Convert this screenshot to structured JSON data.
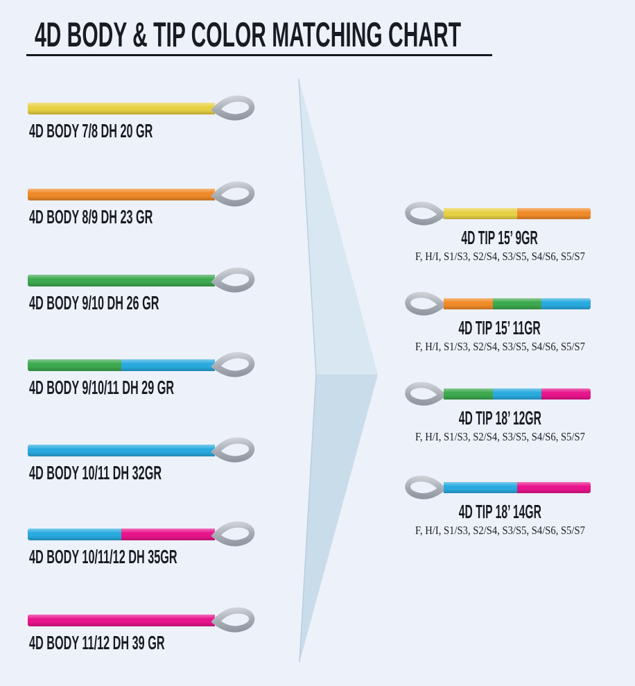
{
  "title": "4D BODY & TIP COLOR MATCHING CHART",
  "colors": {
    "yellow": "#e8d044",
    "orange": "#f08a28",
    "green": "#3ca94e",
    "blue": "#29aadf",
    "pink": "#e8148c",
    "loop_light": "#d2d6db",
    "loop_mid": "#a8adb5",
    "loop_dark": "#8e949d",
    "arrow_light": "#d8e7f1",
    "arrow_main": "#c9dcea",
    "arrow_dark": "#b7cfdf",
    "background": "#edf1f9",
    "text": "#181c22"
  },
  "bodies": [
    {
      "label": "4D BODY 7/8 DH 20 GR",
      "segments": [
        "yellow"
      ]
    },
    {
      "label": "4D BODY 8/9 DH 23 GR",
      "segments": [
        "orange"
      ]
    },
    {
      "label": "4D BODY 9/10 DH 26 GR",
      "segments": [
        "green"
      ]
    },
    {
      "label": "4D BODY 9/10/11 DH 29 GR",
      "segments": [
        "green",
        "blue"
      ]
    },
    {
      "label": "4D BODY 10/11 DH 32GR",
      "segments": [
        "blue"
      ]
    },
    {
      "label": "4D BODY 10/11/12 DH 35GR",
      "segments": [
        "blue",
        "pink"
      ]
    },
    {
      "label": "4D BODY 11/12 DH 39 GR",
      "segments": [
        "pink"
      ]
    }
  ],
  "tips": [
    {
      "label": "4D TIP 15’ 9GR",
      "sub": "F, H/I, S1/S3, S2/S4, S3/S5, S4/S6, S5/S7",
      "segments": [
        "yellow",
        "orange"
      ]
    },
    {
      "label": "4D TIP 15’ 11GR",
      "sub": "F, H/I, S1/S3, S2/S4, S3/S5, S4/S6, S5/S7",
      "segments": [
        "orange",
        "green",
        "blue"
      ]
    },
    {
      "label": "4D TIP 18’ 12GR",
      "sub": "F, H/I, S1/S3, S2/S4, S3/S5, S4/S6, S5/S7",
      "segments": [
        "green",
        "blue",
        "pink"
      ]
    },
    {
      "label": "4D TIP 18’ 14GR",
      "sub": "F, H/I, S1/S3, S2/S4, S3/S5, S4/S6, S5/S7",
      "segments": [
        "blue",
        "pink"
      ]
    }
  ]
}
